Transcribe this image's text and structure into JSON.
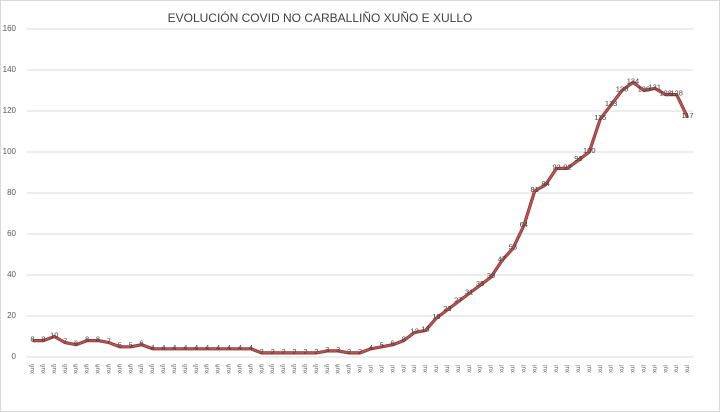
{
  "chart_data": {
    "type": "line",
    "title": "EVOLUCIÓN COVID NO  CARBALLIÑO XUÑO E XULLO",
    "categories": [
      "xuñ",
      "xuñ",
      "xuñ",
      "xuñ",
      "xuñ",
      "xuñ",
      "xuñ",
      "xuñ",
      "xuñ",
      "xuñ",
      "xuñ",
      "xuñ",
      "xuñ",
      "xuñ",
      "xuñ",
      "xuñ",
      "xuñ",
      "xuñ",
      "xuñ",
      "xuñ",
      "xuñ",
      "xuñ",
      "xuñ",
      "xuñ",
      "xuñ",
      "xuñ",
      "xuñ",
      "xuñ",
      "xuñ",
      "xuñ",
      "xul",
      "xul",
      "xul",
      "xul",
      "xul",
      "xul",
      "xul",
      "xul",
      "xul",
      "xul",
      "xul",
      "xul",
      "xul",
      "xul",
      "xul",
      "xul",
      "xul",
      "xul",
      "xul",
      "xul",
      "xul",
      "xul",
      "xul",
      "xul",
      "xul",
      "xul",
      "xul",
      "xul",
      "xul",
      "xul",
      "xul"
    ],
    "values": [
      8,
      8,
      10,
      7,
      6,
      8,
      8,
      7,
      5,
      5,
      6,
      4,
      4,
      4,
      4,
      4,
      4,
      4,
      4,
      4,
      4,
      2,
      2,
      2,
      2,
      2,
      2,
      3,
      3,
      2,
      2,
      4,
      5,
      6,
      8,
      12,
      13,
      19,
      23,
      27,
      31,
      35,
      39,
      47,
      53,
      64,
      81,
      84,
      92,
      92,
      96,
      100,
      116,
      123,
      130,
      134,
      130,
      131,
      128,
      128,
      117
    ],
    "color": "#c0504d",
    "ylim": [
      0,
      160
    ],
    "yticks": [
      0,
      20,
      40,
      60,
      80,
      100,
      120,
      140,
      160
    ],
    "grid": true
  }
}
